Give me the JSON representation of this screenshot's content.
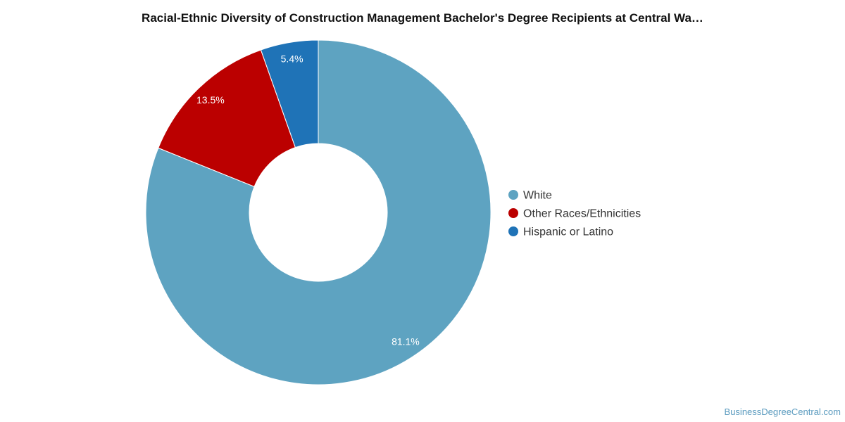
{
  "chart_data": {
    "type": "pie",
    "title": "Racial-Ethnic Diversity of Construction Management Bachelor's Degree Recipients at Central Wa…",
    "donut": true,
    "legend_position": "right",
    "slices": [
      {
        "name": "White",
        "value": 81.1,
        "label": "81.1%",
        "color": "#5ea3c1"
      },
      {
        "name": "Other Races/Ethnicities",
        "value": 13.5,
        "label": "13.5%",
        "color": "#bb0000"
      },
      {
        "name": "Hispanic or Latino",
        "value": 5.4,
        "label": "5.4%",
        "color": "#1f73b7"
      }
    ]
  },
  "watermark": "BusinessDegreeCentral.com"
}
